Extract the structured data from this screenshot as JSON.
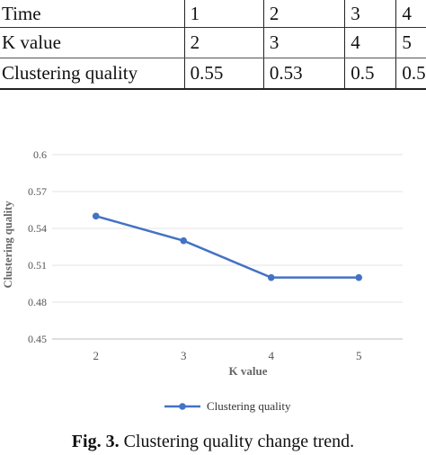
{
  "table": {
    "rows": [
      {
        "label": "Time",
        "values": [
          "1",
          "2",
          "3",
          "4"
        ]
      },
      {
        "label": "K value",
        "values": [
          "2",
          "3",
          "4",
          "5"
        ]
      },
      {
        "label": "Clustering quality",
        "values": [
          "0.55",
          "0.53",
          "0.5",
          "0.5"
        ]
      }
    ]
  },
  "caption": {
    "label": "Fig. 3.",
    "text": "Clustering quality change trend."
  },
  "chart_data": {
    "type": "line",
    "x": [
      2,
      3,
      4,
      5
    ],
    "categories": [
      "2",
      "3",
      "4",
      "5"
    ],
    "series": [
      {
        "name": "Clustering quality",
        "values": [
          0.55,
          0.53,
          0.5,
          0.5
        ],
        "color": "#4472c4"
      }
    ],
    "xlabel": "K value",
    "ylabel": "Clustering quality",
    "ylim": [
      0.45,
      0.6
    ],
    "yticks": [
      "0.45",
      "0.48",
      "0.51",
      "0.54",
      "0.57",
      "0.6"
    ],
    "grid": "horizontal",
    "legend": "bottom"
  }
}
